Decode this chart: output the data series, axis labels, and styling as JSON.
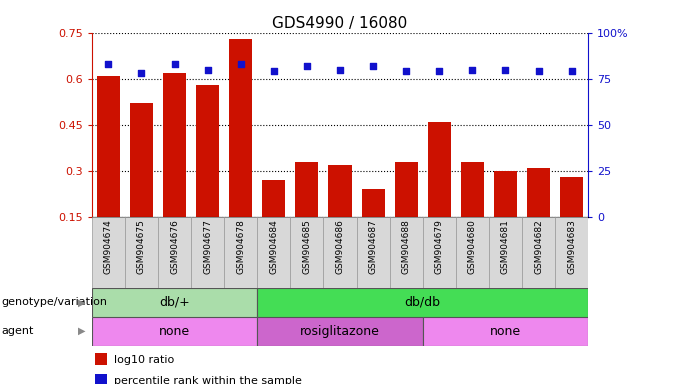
{
  "title": "GDS4990 / 16080",
  "samples": [
    "GSM904674",
    "GSM904675",
    "GSM904676",
    "GSM904677",
    "GSM904678",
    "GSM904684",
    "GSM904685",
    "GSM904686",
    "GSM904687",
    "GSM904688",
    "GSM904679",
    "GSM904680",
    "GSM904681",
    "GSM904682",
    "GSM904683"
  ],
  "log10_ratio": [
    0.61,
    0.52,
    0.62,
    0.58,
    0.73,
    0.27,
    0.33,
    0.32,
    0.24,
    0.33,
    0.46,
    0.33,
    0.3,
    0.31,
    0.28
  ],
  "percentile": [
    83,
    78,
    83,
    80,
    83,
    79,
    82,
    80,
    82,
    79,
    79,
    80,
    80,
    79,
    79
  ],
  "ylim_left": [
    0.15,
    0.75
  ],
  "ylim_right": [
    0,
    100
  ],
  "yticks_left": [
    0.15,
    0.3,
    0.45,
    0.6,
    0.75
  ],
  "yticks_right": [
    0,
    25,
    50,
    75,
    100
  ],
  "ytick_labels_right": [
    "0",
    "25",
    "50",
    "75",
    "100%"
  ],
  "bar_color": "#cc1100",
  "dot_color": "#1111cc",
  "bar_bottom": 0.15,
  "genotype_groups": [
    {
      "label": "db/+",
      "start": 0,
      "end": 5,
      "color": "#aaddaa"
    },
    {
      "label": "db/db",
      "start": 5,
      "end": 15,
      "color": "#44dd55"
    }
  ],
  "agent_groups": [
    {
      "label": "none",
      "start": 0,
      "end": 5,
      "color": "#ee88ee"
    },
    {
      "label": "rosiglitazone",
      "start": 5,
      "end": 10,
      "color": "#cc66cc"
    },
    {
      "label": "none",
      "start": 10,
      "end": 15,
      "color": "#ee88ee"
    }
  ],
  "legend_bar_label": "log10 ratio",
  "legend_dot_label": "percentile rank within the sample",
  "tick_fontsize": 8,
  "title_fontsize": 11,
  "sample_fontsize": 6.5,
  "group_fontsize": 9,
  "legend_fontsize": 8,
  "row_label_fontsize": 8
}
